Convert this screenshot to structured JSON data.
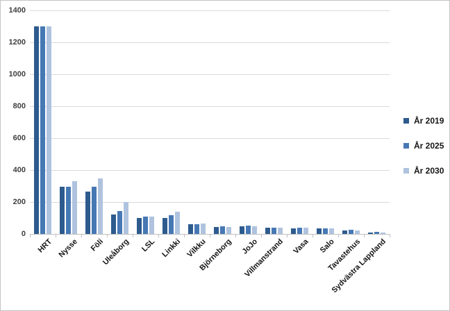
{
  "chart_data": {
    "type": "bar",
    "title": "",
    "categories": [
      "HRT",
      "Nysse",
      "Föli",
      "Uleåborg",
      "LSL",
      "Linkki",
      "Vilkku",
      "Björneborg",
      "JoJo",
      "Villmanstrand",
      "Vasa",
      "Salo",
      "Tavastehus",
      "Sydvästra Lappland"
    ],
    "series": [
      {
        "name": "År 2019",
        "color": "#2e5b8e",
        "values": [
          1300,
          295,
          265,
          120,
          100,
          100,
          60,
          45,
          46,
          37,
          36,
          33,
          21,
          10
        ]
      },
      {
        "name": "År 2025",
        "color": "#4678b4",
        "values": [
          1300,
          295,
          297,
          143,
          110,
          117,
          63,
          49,
          50,
          41,
          40,
          35,
          24,
          12
        ]
      },
      {
        "name": "År 2030",
        "color": "#afc3df",
        "values": [
          1300,
          330,
          347,
          198,
          108,
          138,
          67,
          44,
          46,
          38,
          39,
          33,
          21,
          8
        ]
      }
    ],
    "y_axis": {
      "min": 0,
      "max": 1400,
      "step": 200,
      "tick_labels": [
        "0",
        "200",
        "400",
        "600",
        "800",
        "1000",
        "1200",
        "1400"
      ]
    },
    "xlabel": "",
    "ylabel": "",
    "ylim": [
      0,
      1400
    ],
    "grid": true,
    "legend_position": "right",
    "x_labels_rotation_deg": 45,
    "colors": {
      "gridline": "#d9d9d9",
      "axis": "#bfbfbf",
      "tick_text": "#3f3f3f",
      "category_text": "#141414"
    }
  }
}
